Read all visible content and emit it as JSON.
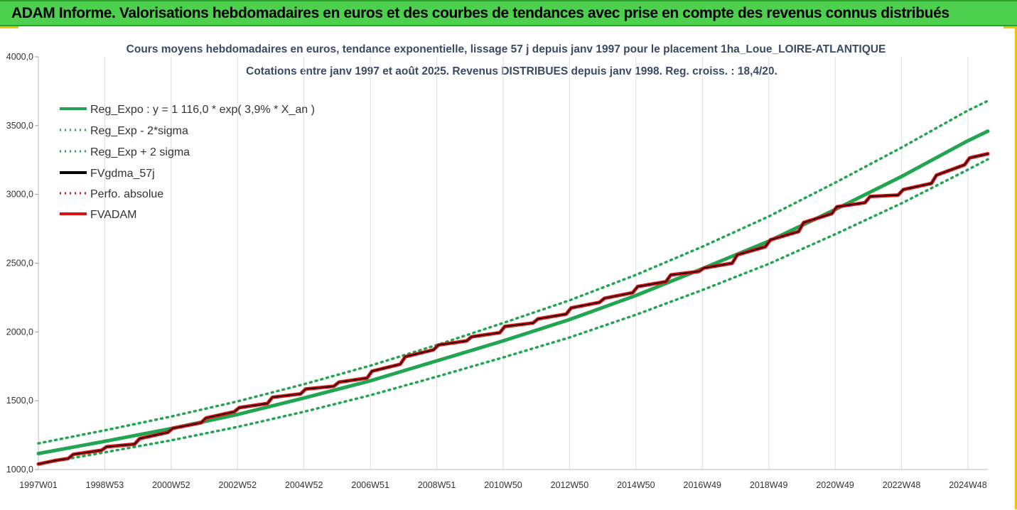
{
  "header": {
    "banner": "ADAM Informe. Valorisations hebdomadaires en euros et des courbes de tendances avec prise en compte des revenus connus distribués"
  },
  "colors": {
    "banner_bg": "#4dd04d",
    "reg_expo": "#22a550",
    "fvadam": "#e01010",
    "fvgdma": "#000000",
    "accent_corner": "#f5c000"
  },
  "chart_data": {
    "type": "line",
    "title": "Cours moyens hebdomadaires en euros, tendance exponentielle, lissage 57 j depuis janv 1997 pour le placement 1ha_Loue_LOIRE-ATLANTIQUE",
    "subtitle": "Cotations entre janv 1997 et août 2025. Revenus DISTRIBUES depuis janv 1998. Reg. croiss. : 18,4/20.",
    "ylim": [
      1000,
      4000
    ],
    "y_ticks": [
      "1000,0",
      "1500,0",
      "2000,0",
      "2500,0",
      "3000,0",
      "3500,0",
      "4000,0"
    ],
    "x_range_years": [
      1997.0,
      2025.6
    ],
    "x_ticks": [
      {
        "label": "1997W01",
        "year": 1997.0
      },
      {
        "label": "1998W53",
        "year": 1999.0
      },
      {
        "label": "2000W52",
        "year": 2001.0
      },
      {
        "label": "2002W52",
        "year": 2003.0
      },
      {
        "label": "2004W52",
        "year": 2005.0
      },
      {
        "label": "2006W51",
        "year": 2007.0
      },
      {
        "label": "2008W51",
        "year": 2009.0
      },
      {
        "label": "2010W50",
        "year": 2011.0
      },
      {
        "label": "2012W50",
        "year": 2013.0
      },
      {
        "label": "2014W50",
        "year": 2015.0
      },
      {
        "label": "2016W49",
        "year": 2017.0
      },
      {
        "label": "2018W49",
        "year": 2019.0
      },
      {
        "label": "2020W49",
        "year": 2021.0
      },
      {
        "label": "2022W48",
        "year": 2023.0
      },
      {
        "label": "2024W48",
        "year": 2025.0
      }
    ],
    "legend": [
      {
        "name": "Reg_Expo : y = 1 116,0 * exp( 3,9% *  X_an )",
        "style": "solid",
        "color": "#22a550"
      },
      {
        "name": "Reg_Exp - 2*sigma",
        "style": "dotted",
        "color": "#22a550"
      },
      {
        "name": "Reg_Exp + 2 sigma",
        "style": "dotted",
        "color": "#22a550"
      },
      {
        "name": "FVgdma_57j",
        "style": "solid",
        "color": "#000000"
      },
      {
        "name": "Perfo. absolue",
        "style": "dotted",
        "color": "#e01010"
      },
      {
        "name": "FVADAM",
        "style": "solid",
        "color": "#e01010"
      }
    ],
    "legend_position": "top-left",
    "grid": "vertical",
    "series": [
      {
        "name": "Reg_Expo : y = 1 116,0 * exp( 3,9% *  X_an )",
        "x": [
          1997,
          1999,
          2001,
          2003,
          2005,
          2007,
          2009,
          2011,
          2013,
          2015,
          2017,
          2019,
          2021,
          2023,
          2025,
          2025.6
        ],
        "y": [
          1116,
          1205,
          1298,
          1400,
          1520,
          1645,
          1790,
          1935,
          2090,
          2265,
          2460,
          2660,
          2890,
          3130,
          3390,
          3460
        ]
      },
      {
        "name": "Reg_Exp - 2*sigma",
        "x": [
          1997,
          1999,
          2001,
          2003,
          2005,
          2007,
          2009,
          2011,
          2013,
          2015,
          2017,
          2019,
          2021,
          2023,
          2025,
          2025.6
        ],
        "y": [
          1040,
          1125,
          1212,
          1310,
          1420,
          1540,
          1675,
          1815,
          1960,
          2125,
          2305,
          2495,
          2710,
          2935,
          3180,
          3255
        ]
      },
      {
        "name": "Reg_Exp + 2 sigma",
        "x": [
          1997,
          1999,
          2001,
          2003,
          2005,
          2007,
          2009,
          2011,
          2013,
          2015,
          2017,
          2019,
          2021,
          2023,
          2025,
          2025.6
        ],
        "y": [
          1190,
          1285,
          1385,
          1495,
          1620,
          1755,
          1905,
          2065,
          2230,
          2415,
          2620,
          2840,
          3085,
          3340,
          3610,
          3680
        ]
      },
      {
        "name": "FVADAM",
        "x": [
          1997.0,
          1997.5,
          1997.9,
          1998.05,
          1998.9,
          1999.05,
          1999.9,
          2000.05,
          2000.9,
          2001.05,
          2001.9,
          2002.05,
          2002.9,
          2003.05,
          2003.9,
          2004.05,
          2004.9,
          2005.05,
          2005.9,
          2006.05,
          2006.9,
          2007.05,
          2007.9,
          2008.05,
          2008.9,
          2009.05,
          2009.9,
          2010.05,
          2010.9,
          2011.05,
          2011.9,
          2012.05,
          2012.9,
          2013.05,
          2013.9,
          2014.05,
          2014.9,
          2015.05,
          2015.9,
          2016.05,
          2016.9,
          2017.05,
          2017.9,
          2018.05,
          2018.9,
          2019.05,
          2019.9,
          2020.05,
          2020.9,
          2021.05,
          2021.9,
          2022.05,
          2022.9,
          2023.05,
          2023.9,
          2024.05,
          2024.9,
          2025.05,
          2025.6
        ],
        "y": [
          1040,
          1065,
          1080,
          1110,
          1140,
          1165,
          1185,
          1225,
          1270,
          1300,
          1340,
          1375,
          1420,
          1450,
          1480,
          1525,
          1550,
          1585,
          1605,
          1635,
          1665,
          1715,
          1765,
          1820,
          1870,
          1905,
          1935,
          1965,
          1995,
          2040,
          2065,
          2095,
          2130,
          2175,
          2215,
          2245,
          2285,
          2330,
          2365,
          2415,
          2440,
          2465,
          2500,
          2560,
          2620,
          2670,
          2730,
          2795,
          2860,
          2910,
          2940,
          2985,
          2995,
          3035,
          3080,
          3140,
          3215,
          3265,
          3295
        ]
      },
      {
        "name": "FVgdma_57j",
        "x": [
          1997.0,
          1997.5,
          1997.9,
          1998.05,
          1998.9,
          1999.05,
          1999.9,
          2000.05,
          2000.9,
          2001.05,
          2001.9,
          2002.05,
          2002.9,
          2003.05,
          2003.9,
          2004.05,
          2004.9,
          2005.05,
          2005.9,
          2006.05,
          2006.9,
          2007.05,
          2007.9,
          2008.05,
          2008.9,
          2009.05,
          2009.9,
          2010.05,
          2010.9,
          2011.05,
          2011.9,
          2012.05,
          2012.9,
          2013.05,
          2013.9,
          2014.05,
          2014.9,
          2015.05,
          2015.9,
          2016.05,
          2016.9,
          2017.05,
          2017.9,
          2018.05,
          2018.9,
          2019.05,
          2019.9,
          2020.05,
          2020.9,
          2021.05,
          2021.9,
          2022.05,
          2022.9,
          2023.05,
          2023.9,
          2024.05,
          2024.9,
          2025.05,
          2025.6
        ],
        "y": [
          1040,
          1065,
          1080,
          1110,
          1140,
          1165,
          1185,
          1225,
          1270,
          1300,
          1340,
          1375,
          1420,
          1450,
          1480,
          1525,
          1550,
          1585,
          1605,
          1635,
          1665,
          1715,
          1765,
          1820,
          1870,
          1905,
          1935,
          1965,
          1995,
          2040,
          2065,
          2095,
          2130,
          2175,
          2215,
          2245,
          2285,
          2330,
          2365,
          2415,
          2440,
          2465,
          2500,
          2560,
          2620,
          2670,
          2730,
          2795,
          2860,
          2910,
          2940,
          2985,
          2995,
          3035,
          3080,
          3140,
          3215,
          3265,
          3295
        ]
      }
    ]
  }
}
